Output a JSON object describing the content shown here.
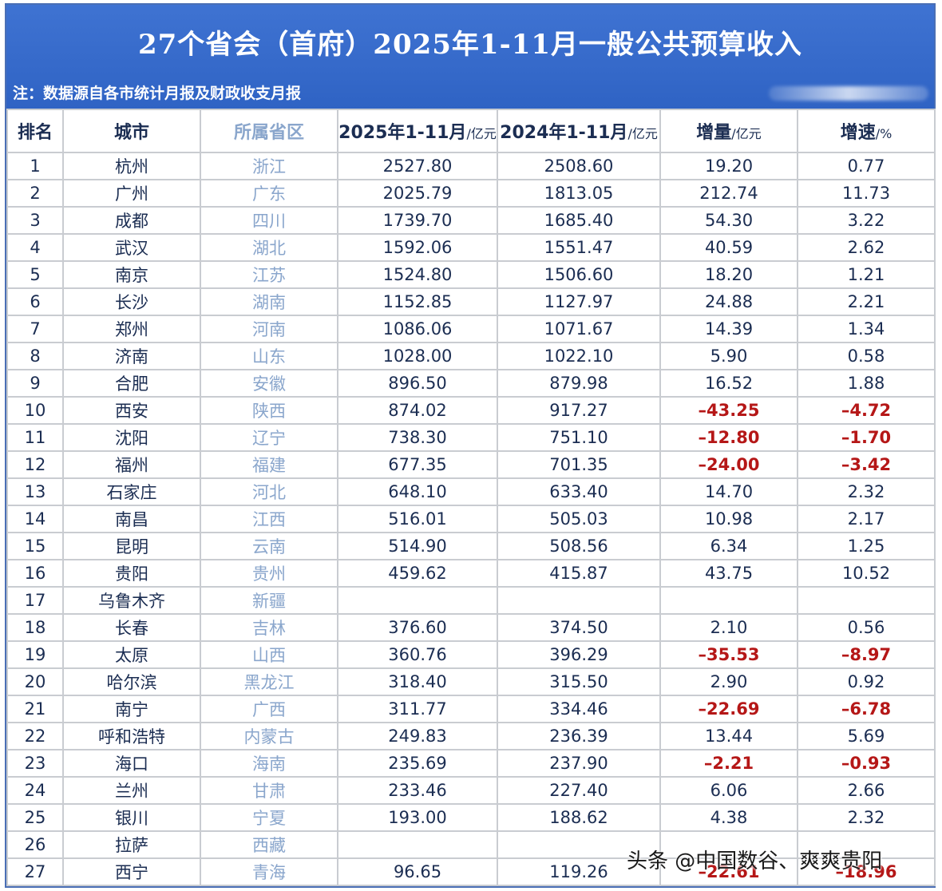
{
  "title": "27个省会（首府）2025年1-11月一般公共预算收入",
  "note": "注：数据源自各市统计月报及财政收支月报",
  "headers": {
    "rank": "排名",
    "city": "城市",
    "province": "所属省区",
    "y2025": "2025年1-11月",
    "y2025_unit": "/亿元",
    "y2024": "2024年1-11月",
    "y2024_unit": "/亿元",
    "increase": "增量",
    "increase_unit": "/亿元",
    "growth": "增速",
    "growth_unit": "/%"
  },
  "rows": [
    {
      "rank": "1",
      "city": "杭州",
      "province": "浙江",
      "y2025": "2527.80",
      "y2024": "2508.60",
      "increase": "19.20",
      "growth": "0.77"
    },
    {
      "rank": "2",
      "city": "广州",
      "province": "广东",
      "y2025": "2025.79",
      "y2024": "1813.05",
      "increase": "212.74",
      "growth": "11.73"
    },
    {
      "rank": "3",
      "city": "成都",
      "province": "四川",
      "y2025": "1739.70",
      "y2024": "1685.40",
      "increase": "54.30",
      "growth": "3.22"
    },
    {
      "rank": "4",
      "city": "武汉",
      "province": "湖北",
      "y2025": "1592.06",
      "y2024": "1551.47",
      "increase": "40.59",
      "growth": "2.62"
    },
    {
      "rank": "5",
      "city": "南京",
      "province": "江苏",
      "y2025": "1524.80",
      "y2024": "1506.60",
      "increase": "18.20",
      "growth": "1.21"
    },
    {
      "rank": "6",
      "city": "长沙",
      "province": "湖南",
      "y2025": "1152.85",
      "y2024": "1127.97",
      "increase": "24.88",
      "growth": "2.21"
    },
    {
      "rank": "7",
      "city": "郑州",
      "province": "河南",
      "y2025": "1086.06",
      "y2024": "1071.67",
      "increase": "14.39",
      "growth": "1.34"
    },
    {
      "rank": "8",
      "city": "济南",
      "province": "山东",
      "y2025": "1028.00",
      "y2024": "1022.10",
      "increase": "5.90",
      "growth": "0.58"
    },
    {
      "rank": "9",
      "city": "合肥",
      "province": "安徽",
      "y2025": "896.50",
      "y2024": "879.98",
      "increase": "16.52",
      "growth": "1.88"
    },
    {
      "rank": "10",
      "city": "西安",
      "province": "陕西",
      "y2025": "874.02",
      "y2024": "917.27",
      "increase": "–43.25",
      "growth": "–4.72"
    },
    {
      "rank": "11",
      "city": "沈阳",
      "province": "辽宁",
      "y2025": "738.30",
      "y2024": "751.10",
      "increase": "–12.80",
      "growth": "–1.70"
    },
    {
      "rank": "12",
      "city": "福州",
      "province": "福建",
      "y2025": "677.35",
      "y2024": "701.35",
      "increase": "–24.00",
      "growth": "–3.42"
    },
    {
      "rank": "13",
      "city": "石家庄",
      "province": "河北",
      "y2025": "648.10",
      "y2024": "633.40",
      "increase": "14.70",
      "growth": "2.32"
    },
    {
      "rank": "14",
      "city": "南昌",
      "province": "江西",
      "y2025": "516.01",
      "y2024": "505.03",
      "increase": "10.98",
      "growth": "2.17"
    },
    {
      "rank": "15",
      "city": "昆明",
      "province": "云南",
      "y2025": "514.90",
      "y2024": "508.56",
      "increase": "6.34",
      "growth": "1.25"
    },
    {
      "rank": "16",
      "city": "贵阳",
      "province": "贵州",
      "y2025": "459.62",
      "y2024": "415.87",
      "increase": "43.75",
      "growth": "10.52"
    },
    {
      "rank": "17",
      "city": "乌鲁木齐",
      "province": "新疆",
      "y2025": "",
      "y2024": "",
      "increase": "",
      "growth": ""
    },
    {
      "rank": "18",
      "city": "长春",
      "province": "吉林",
      "y2025": "376.60",
      "y2024": "374.50",
      "increase": "2.10",
      "growth": "0.56"
    },
    {
      "rank": "19",
      "city": "太原",
      "province": "山西",
      "y2025": "360.76",
      "y2024": "396.29",
      "increase": "–35.53",
      "growth": "–8.97"
    },
    {
      "rank": "20",
      "city": "哈尔滨",
      "province": "黑龙江",
      "y2025": "318.40",
      "y2024": "315.50",
      "increase": "2.90",
      "growth": "0.92"
    },
    {
      "rank": "21",
      "city": "南宁",
      "province": "广西",
      "y2025": "311.77",
      "y2024": "334.46",
      "increase": "–22.69",
      "growth": "–6.78"
    },
    {
      "rank": "22",
      "city": "呼和浩特",
      "province": "内蒙古",
      "y2025": "249.83",
      "y2024": "236.39",
      "increase": "13.44",
      "growth": "5.69"
    },
    {
      "rank": "23",
      "city": "海口",
      "province": "海南",
      "y2025": "235.69",
      "y2024": "237.90",
      "increase": "–2.21",
      "growth": "–0.93"
    },
    {
      "rank": "24",
      "city": "兰州",
      "province": "甘肃",
      "y2025": "233.46",
      "y2024": "227.40",
      "increase": "6.06",
      "growth": "2.66"
    },
    {
      "rank": "25",
      "city": "银川",
      "province": "宁夏",
      "y2025": "193.00",
      "y2024": "188.62",
      "increase": "4.38",
      "growth": "2.32"
    },
    {
      "rank": "26",
      "city": "拉萨",
      "province": "西藏",
      "y2025": "",
      "y2024": "",
      "increase": "",
      "growth": ""
    },
    {
      "rank": "27",
      "city": "西宁",
      "province": "青海",
      "y2025": "96.65",
      "y2024": "119.26",
      "increase": "–22.61",
      "growth": "–18.96"
    }
  ],
  "watermark": "头条 @中国数谷、爽爽贵阳",
  "colors": {
    "banner": "#3f73d2",
    "text": "#1b2d52",
    "province_text": "#8aa6cc",
    "negative": "#b51717",
    "grid": "#c9ccd1"
  }
}
